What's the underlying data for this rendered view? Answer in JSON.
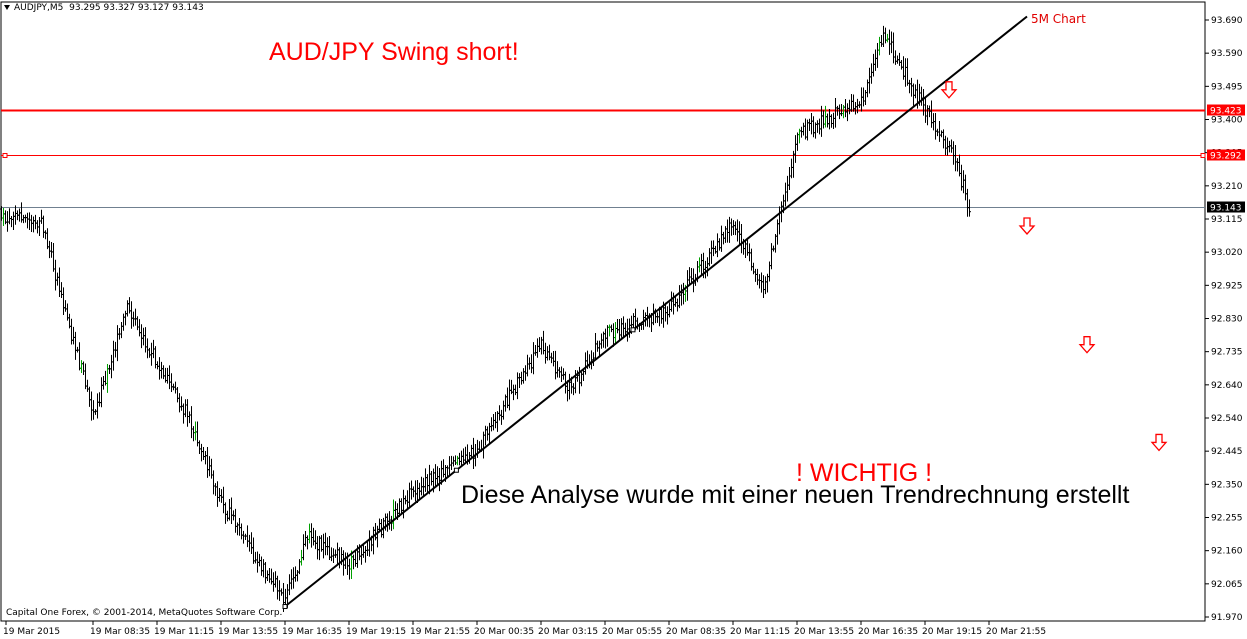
{
  "header": {
    "symbol": "AUDJPY,M5",
    "ohlc": "93.295 93.327 93.127 93.143"
  },
  "annotations": {
    "chart_label": "5M Chart",
    "headline": "AUD/JPY Swing short!",
    "warning": "! WICHTIG !",
    "analysis_note": "Diese Analyse wurde mit einer neuen Trendrechnung erstellt"
  },
  "footer": {
    "copyright": "Capital One Forex, © 2001-2014, MetaQuotes Software Corp."
  },
  "colors": {
    "bars": "#000000",
    "up_bars": "#00a000",
    "resistance": "#ff0000",
    "annotation": "#ff0000",
    "price_line": "#708090",
    "trendline": "#000000"
  },
  "chart_data": {
    "type": "ohlc",
    "ylim": [
      91.97,
      93.68
    ],
    "y_ticks": [
      "93.690",
      "93.590",
      "93.495",
      "93.400",
      "93.305",
      "93.210",
      "93.115",
      "93.020",
      "92.925",
      "92.830",
      "92.735",
      "92.640",
      "92.540",
      "92.445",
      "92.350",
      "92.255",
      "92.160",
      "92.065",
      "91.970"
    ],
    "x_ticks": [
      "19 Mar 2015",
      "19 Mar 08:35",
      "19 Mar 11:15",
      "19 Mar 13:55",
      "19 Mar 16:35",
      "19 Mar 19:15",
      "19 Mar 21:55",
      "20 Mar 00:35",
      "20 Mar 03:15",
      "20 Mar 05:55",
      "20 Mar 08:35",
      "20 Mar 11:15",
      "20 Mar 13:55",
      "20 Mar 16:35",
      "20 Mar 19:15",
      "20 Mar 21:55"
    ],
    "horizontal_lines": [
      {
        "price": 93.423,
        "label": "93.423",
        "style": "thick"
      },
      {
        "price": 93.292,
        "label": "93.292",
        "style": "thin"
      },
      {
        "price": 93.143,
        "label": "93.143",
        "style": "current"
      }
    ],
    "trendline": {
      "from": {
        "time": "19 Mar 16:35",
        "price": 92.0
      },
      "to": {
        "time": "20 Mar 23:30",
        "price": 93.69
      }
    },
    "price_path": [
      {
        "time": "19 Mar 2015",
        "price": 93.2
      },
      {
        "time": "19 Mar 07:00",
        "price": 93.1
      },
      {
        "time": "19 Mar 08:00",
        "price": 92.75
      },
      {
        "time": "19 Mar 08:35",
        "price": 92.55
      },
      {
        "time": "19 Mar 10:00",
        "price": 92.85
      },
      {
        "time": "19 Mar 11:15",
        "price": 92.7
      },
      {
        "time": "19 Mar 12:30",
        "price": 92.55
      },
      {
        "time": "19 Mar 13:55",
        "price": 92.3
      },
      {
        "time": "19 Mar 15:15",
        "price": 92.15
      },
      {
        "time": "19 Mar 16:35",
        "price": 92.02
      },
      {
        "time": "19 Mar 17:30",
        "price": 92.2
      },
      {
        "time": "19 Mar 19:15",
        "price": 92.12
      },
      {
        "time": "19 Mar 21:55",
        "price": 92.33
      },
      {
        "time": "20 Mar 00:35",
        "price": 92.45
      },
      {
        "time": "20 Mar 03:15",
        "price": 92.75
      },
      {
        "time": "20 Mar 04:30",
        "price": 92.62
      },
      {
        "time": "20 Mar 05:55",
        "price": 92.78
      },
      {
        "time": "20 Mar 08:35",
        "price": 92.85
      },
      {
        "time": "20 Mar 11:15",
        "price": 93.1
      },
      {
        "time": "20 Mar 12:30",
        "price": 92.9
      },
      {
        "time": "20 Mar 13:55",
        "price": 93.35
      },
      {
        "time": "20 Mar 16:35",
        "price": 93.45
      },
      {
        "time": "20 Mar 17:30",
        "price": 93.64
      },
      {
        "time": "20 Mar 19:15",
        "price": 93.42
      },
      {
        "time": "20 Mar 20:30",
        "price": 93.28
      },
      {
        "time": "20 Mar 21:05",
        "price": 93.143
      }
    ],
    "projection_arrows": [
      {
        "time": "20 Mar 20:15",
        "price": 93.48
      },
      {
        "time": "20 Mar 23:30",
        "price": 93.09
      },
      {
        "time": "21 Mar 02:00",
        "price": 92.75
      },
      {
        "time": "21 Mar 05:00",
        "price": 92.47
      }
    ]
  }
}
